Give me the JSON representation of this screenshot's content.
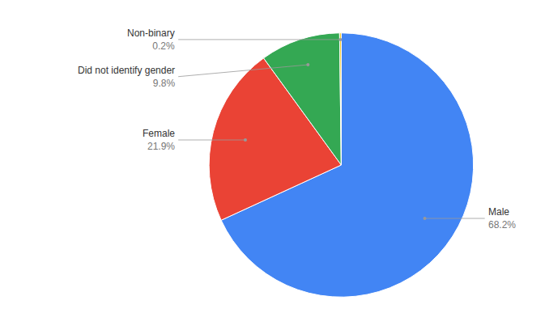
{
  "chart_data": {
    "type": "pie",
    "categories": [
      "Male",
      "Female",
      "Did not identify gender",
      "Non-binary"
    ],
    "values": [
      68.2,
      21.9,
      9.8,
      0.2
    ],
    "value_labels": [
      "68.2%",
      "21.9%",
      "9.8%",
      "0.2%"
    ],
    "colors": [
      "#4285F4",
      "#EA4335",
      "#34A853",
      "#FBBC04"
    ]
  }
}
